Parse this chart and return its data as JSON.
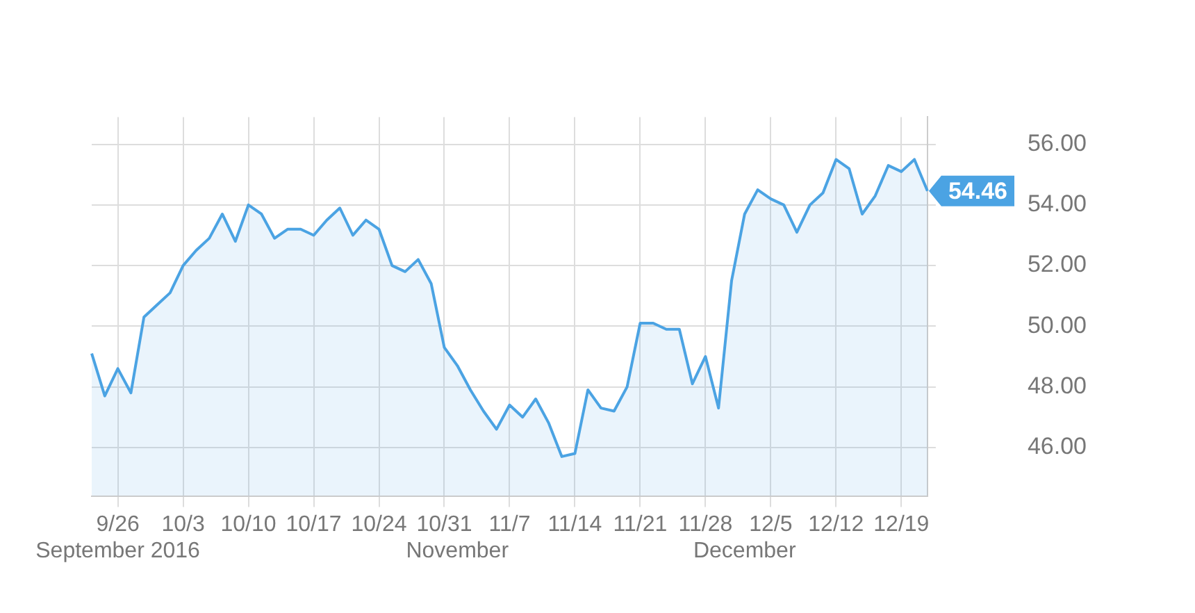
{
  "chart_data": {
    "type": "area",
    "categories": [
      null,
      null,
      "9/26\nSeptember 2016",
      null,
      null,
      null,
      null,
      "10/3",
      null,
      null,
      null,
      null,
      "10/10",
      null,
      null,
      null,
      null,
      "10/17",
      null,
      null,
      null,
      null,
      "10/24",
      null,
      null,
      null,
      null,
      "10/31",
      "\nNovember",
      null,
      null,
      null,
      "11/7",
      null,
      null,
      null,
      null,
      "11/14",
      null,
      null,
      null,
      null,
      "11/21",
      null,
      null,
      null,
      null,
      "11/28",
      null,
      null,
      "\nDecember",
      null,
      "12/5",
      null,
      null,
      null,
      null,
      "12/12",
      null,
      null,
      null,
      null,
      "12/19",
      null,
      null
    ],
    "series": [
      {
        "color": "#4ba3e3",
        "values": [
          49.1,
          47.7,
          48.6,
          47.8,
          50.3,
          50.7,
          51.1,
          52.0,
          52.5,
          52.9,
          53.7,
          52.8,
          54.0,
          53.7,
          52.9,
          53.2,
          53.2,
          53.0,
          53.5,
          53.9,
          53.0,
          53.5,
          53.2,
          52.0,
          51.8,
          52.2,
          51.4,
          49.3,
          48.7,
          47.9,
          47.2,
          46.6,
          47.4,
          47.0,
          47.6,
          46.8,
          45.7,
          45.8,
          47.9,
          47.3,
          47.2,
          48.0,
          50.1,
          50.1,
          49.9,
          49.9,
          48.1,
          49.0,
          47.3,
          51.5,
          53.7,
          54.5,
          54.2,
          54.0,
          53.1,
          54.0,
          54.4,
          55.5,
          55.2,
          53.7,
          54.3,
          55.3,
          55.1,
          55.5,
          54.46
        ],
        "value_labels": [
          null,
          null,
          null,
          null,
          null,
          null,
          null,
          null,
          null,
          null,
          null,
          null,
          null,
          null,
          null,
          null,
          null,
          null,
          null,
          null,
          null,
          null,
          null,
          null,
          null,
          null,
          null,
          null,
          null,
          null,
          null,
          null,
          null,
          null,
          null,
          null,
          null,
          null,
          null,
          null,
          null,
          null,
          null,
          null,
          null,
          null,
          null,
          null,
          null,
          null,
          null,
          null,
          null,
          null,
          null,
          null,
          null,
          null,
          null,
          null,
          null,
          null,
          null,
          null,
          "54.46"
        ]
      }
    ],
    "ylim": [
      44.4,
      56.9
    ],
    "yticks": [
      {
        "value": 46,
        "label": "46.00"
      },
      {
        "value": 48,
        "label": "48.00"
      },
      {
        "value": 50,
        "label": "50.00"
      },
      {
        "value": 52,
        "label": "52.00"
      },
      {
        "value": 54,
        "label": "54.00"
      },
      {
        "value": 56,
        "label": "56.00"
      }
    ],
    "grid": true
  }
}
